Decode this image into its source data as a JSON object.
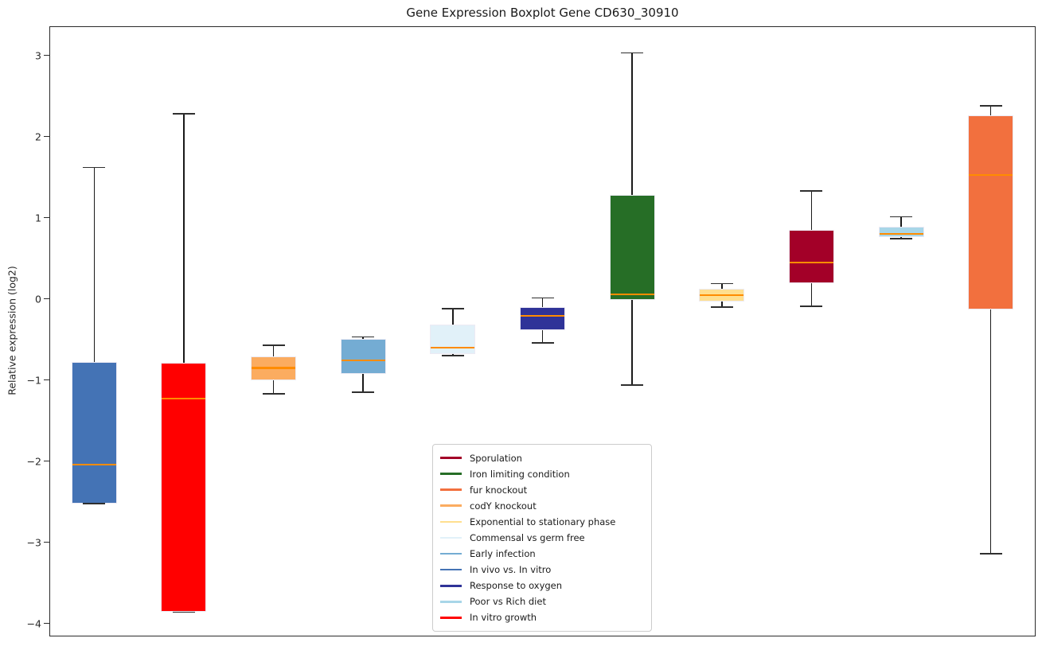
{
  "chart_data": {
    "type": "boxplot",
    "title": "Gene Expression Boxplot Gene CD630_30910",
    "ylabel": "Relative expression (log2)",
    "xlabel": "",
    "ylim": [
      -4.16,
      3.36
    ],
    "yticks": [
      3,
      2,
      1,
      0,
      -1,
      -2,
      -3,
      -4
    ],
    "grid": false,
    "median_color": "#FF8C00",
    "whisker_color": "#1a1a1a",
    "legend_position": "inside lower-center",
    "boxes": [
      {
        "label": "In vivo vs. In vitro",
        "color": "#4473B5",
        "whisker_low": -2.52,
        "q1": -2.52,
        "median": -2.04,
        "q3": -0.78,
        "whisker_high": 1.62
      },
      {
        "label": "In vitro growth",
        "color": "#FF0000",
        "whisker_low": -3.86,
        "q1": -3.86,
        "median": -1.23,
        "q3": -0.79,
        "whisker_high": 2.28
      },
      {
        "label": "codY knockout",
        "color": "#FBAC60",
        "whisker_low": -1.17,
        "q1": -1.0,
        "median": -0.85,
        "q3": -0.71,
        "whisker_high": -0.57
      },
      {
        "label": "Early infection",
        "color": "#74ACD3",
        "whisker_low": -1.15,
        "q1": -0.92,
        "median": -0.76,
        "q3": -0.49,
        "whisker_high": -0.47
      },
      {
        "label": "Commensal vs germ free",
        "color": "#E1F1F9",
        "whisker_low": -0.7,
        "q1": -0.68,
        "median": -0.6,
        "q3": -0.32,
        "whisker_high": -0.12
      },
      {
        "label": "Response to oxygen",
        "color": "#2F3398",
        "whisker_low": -0.54,
        "q1": -0.39,
        "median": -0.21,
        "q3": -0.1,
        "whisker_high": 0.01
      },
      {
        "label": "Iron limiting condition",
        "color": "#266E26",
        "whisker_low": -1.06,
        "q1": -0.01,
        "median": 0.06,
        "q3": 1.28,
        "whisker_high": 3.03
      },
      {
        "label": "Exponential to stationary phase",
        "color": "#FFDF8F",
        "whisker_low": -0.1,
        "q1": -0.03,
        "median": 0.05,
        "q3": 0.12,
        "whisker_high": 0.19
      },
      {
        "label": "Sporulation",
        "color": "#A30028",
        "whisker_low": -0.09,
        "q1": 0.19,
        "median": 0.45,
        "q3": 0.85,
        "whisker_high": 1.33
      },
      {
        "label": "Poor vs Rich diet",
        "color": "#A8D6E8",
        "whisker_low": 0.74,
        "q1": 0.76,
        "median": 0.8,
        "q3": 0.89,
        "whisker_high": 1.01
      },
      {
        "label": "fur knockout",
        "color": "#F2703E",
        "whisker_low": -3.14,
        "q1": -0.13,
        "median": 1.53,
        "q3": 2.26,
        "whisker_high": 2.38
      }
    ],
    "legend": [
      {
        "label": "Sporulation",
        "color": "#A30028"
      },
      {
        "label": "Iron limiting condition",
        "color": "#266E26"
      },
      {
        "label": "fur knockout",
        "color": "#F2703E"
      },
      {
        "label": "codY knockout",
        "color": "#FBAC60"
      },
      {
        "label": "Exponential to stationary phase",
        "color": "#FFDF8F"
      },
      {
        "label": "Commensal vs germ free",
        "color": "#E1F1F9"
      },
      {
        "label": "Early infection",
        "color": "#74ACD3"
      },
      {
        "label": "In vivo vs. In vitro",
        "color": "#4473B5"
      },
      {
        "label": "Response to oxygen",
        "color": "#2F3398"
      },
      {
        "label": "Poor vs Rich diet",
        "color": "#A8D6E8"
      },
      {
        "label": "In vitro growth",
        "color": "#FF0000"
      }
    ]
  }
}
